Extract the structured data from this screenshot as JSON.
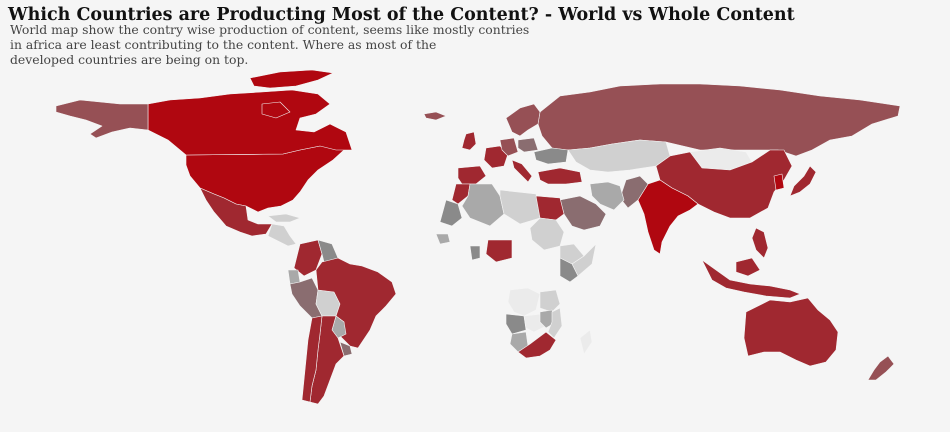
{
  "title": "Which Countries are Producting Most of the Content? - World vs Whole Content",
  "subtitle_lines": [
    "World map show the contry wise production of content, seems like mostly contries",
    "in africa are least contributing to the content. Where as most of the",
    "developed countries are being on top."
  ],
  "chart_data": {
    "type": "choropleth",
    "title": "Which Countries are Producting Most of the Content? - World vs Whole Content",
    "colorscale": [
      "#ebebeb",
      "#d0d0d0",
      "#a9a9a9",
      "#8a8a8a",
      "#8a6d70",
      "#965055",
      "#a02830",
      "#b00710"
    ],
    "legend": "none",
    "countries": [
      {
        "name": "United States",
        "level": 7
      },
      {
        "name": "Canada",
        "level": 7
      },
      {
        "name": "Greenland",
        "level": 7
      },
      {
        "name": "Alaska",
        "level": 5
      },
      {
        "name": "Mexico",
        "level": 6
      },
      {
        "name": "Central America",
        "level": 1
      },
      {
        "name": "Cuba",
        "level": 1
      },
      {
        "name": "Colombia",
        "level": 6
      },
      {
        "name": "Venezuela",
        "level": 3
      },
      {
        "name": "Ecuador",
        "level": 2
      },
      {
        "name": "Peru",
        "level": 4
      },
      {
        "name": "Bolivia",
        "level": 1
      },
      {
        "name": "Brazil",
        "level": 6
      },
      {
        "name": "Paraguay",
        "level": 2
      },
      {
        "name": "Uruguay",
        "level": 4
      },
      {
        "name": "Argentina",
        "level": 6
      },
      {
        "name": "Chile",
        "level": 6
      },
      {
        "name": "Russia",
        "level": 5
      },
      {
        "name": "Kazakhstan",
        "level": 1
      },
      {
        "name": "Mongolia",
        "level": 0
      },
      {
        "name": "China",
        "level": 6
      },
      {
        "name": "India",
        "level": 7
      },
      {
        "name": "Pakistan",
        "level": 4
      },
      {
        "name": "Iran",
        "level": 2
      },
      {
        "name": "Saudi Arabia",
        "level": 4
      },
      {
        "name": "Turkey",
        "level": 6
      },
      {
        "name": "Japan",
        "level": 6
      },
      {
        "name": "South Korea",
        "level": 7
      },
      {
        "name": "Indonesia",
        "level": 6
      },
      {
        "name": "Philippines",
        "level": 6
      },
      {
        "name": "Australia",
        "level": 6
      },
      {
        "name": "New Zealand",
        "level": 5
      },
      {
        "name": "United Kingdom",
        "level": 6
      },
      {
        "name": "France",
        "level": 6
      },
      {
        "name": "Spain",
        "level": 6
      },
      {
        "name": "Germany",
        "level": 5
      },
      {
        "name": "Italy",
        "level": 6
      },
      {
        "name": "Scandinavia",
        "level": 5
      },
      {
        "name": "Poland",
        "level": 4
      },
      {
        "name": "Ukraine",
        "level": 3
      },
      {
        "name": "Iceland",
        "level": 5
      },
      {
        "name": "Morocco",
        "level": 6
      },
      {
        "name": "Algeria",
        "level": 2
      },
      {
        "name": "Libya",
        "level": 1
      },
      {
        "name": "Egypt",
        "level": 6
      },
      {
        "name": "Sudan",
        "level": 1
      },
      {
        "name": "Ethiopia",
        "level": 1
      },
      {
        "name": "Somalia",
        "level": 1
      },
      {
        "name": "Kenya",
        "level": 3
      },
      {
        "name": "Nigeria",
        "level": 6
      },
      {
        "name": "Ghana",
        "level": 3
      },
      {
        "name": "Senegal",
        "level": 2
      },
      {
        "name": "Mauritania",
        "level": 3
      },
      {
        "name": "Congo",
        "level": 0
      },
      {
        "name": "Tanzania",
        "level": 1
      },
      {
        "name": "Angola",
        "level": 3
      },
      {
        "name": "Zambia",
        "level": 0
      },
      {
        "name": "Namibia",
        "level": 2
      },
      {
        "name": "Zimbabwe",
        "level": 2
      },
      {
        "name": "Mozambique",
        "level": 1
      },
      {
        "name": "South Africa",
        "level": 6
      },
      {
        "name": "Madagascar",
        "level": 0
      }
    ]
  }
}
